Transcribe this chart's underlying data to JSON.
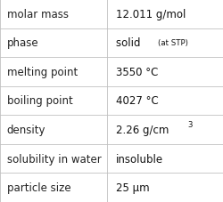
{
  "rows": [
    {
      "label": "molar mass",
      "value": "12.011 g/mol",
      "type": "plain"
    },
    {
      "label": "phase",
      "value": "solid",
      "extra": "(at STP)",
      "type": "phase"
    },
    {
      "label": "melting point",
      "value": "3550 °C",
      "type": "plain"
    },
    {
      "label": "boiling point",
      "value": "4027 °C",
      "type": "plain"
    },
    {
      "label": "density",
      "value": "2.26 g/cm",
      "superscript": "3",
      "type": "super"
    },
    {
      "label": "solubility in water",
      "value": "insoluble",
      "type": "plain"
    },
    {
      "label": "particle size",
      "value": "25 µm",
      "type": "plain"
    }
  ],
  "col_split": 0.478,
  "background_color": "#ffffff",
  "border_color": "#c0c0c0",
  "label_fontsize": 8.5,
  "value_fontsize": 8.5,
  "extra_fontsize": 6.2,
  "super_fontsize": 6.2,
  "label_color": "#222222",
  "value_color": "#111111",
  "font_family": "DejaVu Sans"
}
